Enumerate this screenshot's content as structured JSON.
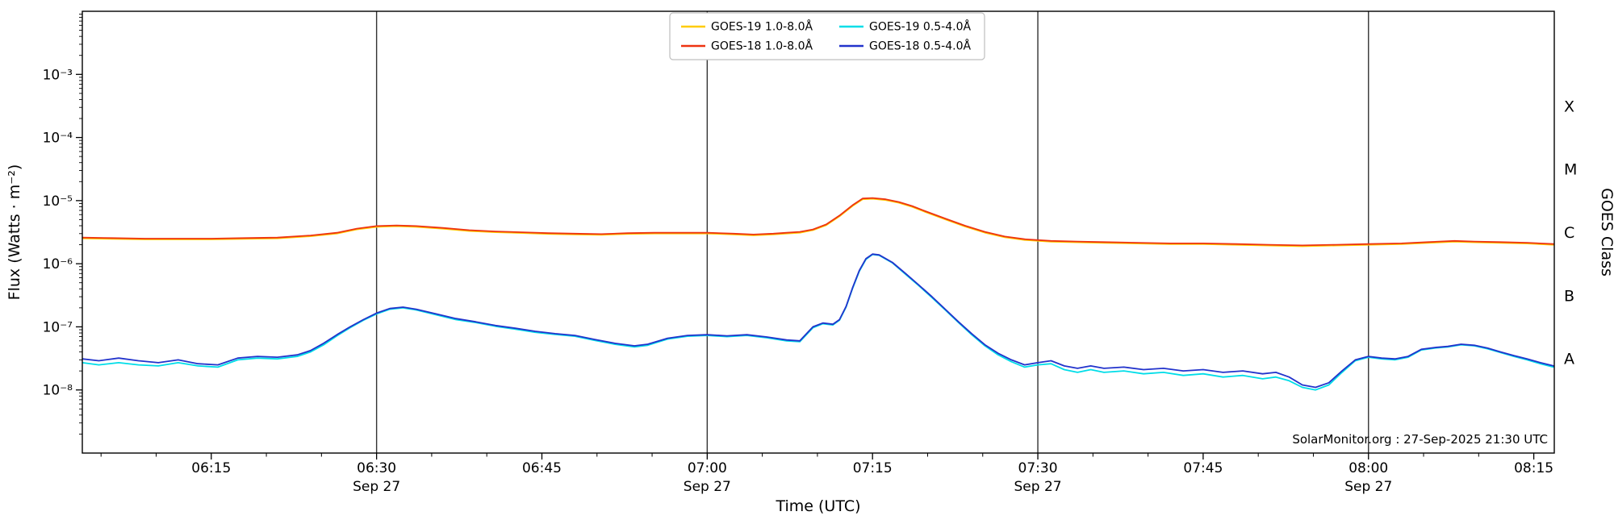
{
  "chart_data": {
    "type": "line",
    "title": "",
    "xlabel": "Time (UTC)",
    "ylabel": "Flux (Watts · m⁻²)",
    "ylabel_right": "GOES Class",
    "watermark": "SolarMonitor.org : 27-Sep-2025 21:30 UTC",
    "x_unit": "hours_utc_decimal",
    "xlim": [
      6.055,
      8.281
    ],
    "ylim_log10": [
      -9,
      -2
    ],
    "grid": false,
    "legend_position": "top-center",
    "x_major_ticks": [
      {
        "hours": 6.25,
        "label": "06:15"
      },
      {
        "hours": 6.5,
        "label": "06:30"
      },
      {
        "hours": 6.75,
        "label": "06:45"
      },
      {
        "hours": 7.0,
        "label": "07:00"
      },
      {
        "hours": 7.25,
        "label": "07:15"
      },
      {
        "hours": 7.5,
        "label": "07:30"
      },
      {
        "hours": 7.75,
        "label": "07:45"
      },
      {
        "hours": 8.0,
        "label": "08:00"
      },
      {
        "hours": 8.25,
        "label": "08:15"
      }
    ],
    "date_markers": [
      {
        "hours": 6.5,
        "label": "Sep 27"
      },
      {
        "hours": 7.0,
        "label": "Sep 27"
      },
      {
        "hours": 7.5,
        "label": "Sep 27"
      },
      {
        "hours": 8.0,
        "label": "Sep 27"
      }
    ],
    "y_ticks": [
      {
        "log10": -3,
        "label": "10⁻³"
      },
      {
        "log10": -4,
        "label": "10⁻⁴"
      },
      {
        "log10": -5,
        "label": "10⁻⁵"
      },
      {
        "log10": -6,
        "label": "10⁻⁶"
      },
      {
        "log10": -7,
        "label": "10⁻⁷"
      },
      {
        "log10": -8,
        "label": "10⁻⁸"
      }
    ],
    "goes_classes": [
      {
        "label": "X",
        "log10": -3.5
      },
      {
        "label": "M",
        "log10": -4.5
      },
      {
        "label": "C",
        "log10": -5.5
      },
      {
        "label": "B",
        "log10": -6.5
      },
      {
        "label": "A",
        "log10": -7.5
      }
    ],
    "legend": {
      "entries": [
        {
          "label": "GOES-19 1.0-8.0Å",
          "color": "#ffcc00"
        },
        {
          "label": "GOES-19 0.5-4.0Å",
          "color": "#00dde8"
        },
        {
          "label": "GOES-18 1.0-8.0Å",
          "color": "#ee3311"
        },
        {
          "label": "GOES-18 0.5-4.0Å",
          "color": "#2233cc"
        }
      ]
    },
    "series": [
      {
        "id": "goes19-long",
        "name": "GOES-19 1.0-8.0Å",
        "color": "#ffcc00",
        "x": [
          6.055,
          6.1,
          6.15,
          6.2,
          6.25,
          6.3,
          6.35,
          6.4,
          6.44,
          6.47,
          6.5,
          6.53,
          6.56,
          6.6,
          6.64,
          6.68,
          6.72,
          6.76,
          6.8,
          6.84,
          6.88,
          6.92,
          6.96,
          7.0,
          7.04,
          7.07,
          7.1,
          7.12,
          7.14,
          7.16,
          7.18,
          7.2,
          7.22,
          7.235,
          7.25,
          7.27,
          7.29,
          7.31,
          7.33,
          7.36,
          7.39,
          7.42,
          7.45,
          7.48,
          7.52,
          7.56,
          7.6,
          7.65,
          7.7,
          7.75,
          7.8,
          7.85,
          7.9,
          7.95,
          8.0,
          8.05,
          8.09,
          8.13,
          8.16,
          8.2,
          8.24,
          8.28
        ],
        "y": [
          2.52e-06,
          2.47e-06,
          2.43e-06,
          2.43e-06,
          2.43e-06,
          2.47e-06,
          2.52e-06,
          2.72e-06,
          3.01e-06,
          3.49e-06,
          3.83e-06,
          3.93e-06,
          3.83e-06,
          3.59e-06,
          3.3e-06,
          3.15e-06,
          3.06e-06,
          2.96e-06,
          2.91e-06,
          2.86e-06,
          2.96e-06,
          3.01e-06,
          3.01e-06,
          3.01e-06,
          2.91e-06,
          2.81e-06,
          2.91e-06,
          3.01e-06,
          3.1e-06,
          3.4e-06,
          4.07e-06,
          5.63e-06,
          8.25e-06,
          1.05e-05,
          1.07e-05,
          1.02e-05,
          9.22e-06,
          7.95e-06,
          6.6e-06,
          5.04e-06,
          3.88e-06,
          3.1e-06,
          2.62e-06,
          2.38e-06,
          2.23e-06,
          2.18e-06,
          2.13e-06,
          2.09e-06,
          2.04e-06,
          2.04e-06,
          1.99e-06,
          1.94e-06,
          1.89e-06,
          1.94e-06,
          1.99e-06,
          2.04e-06,
          2.13e-06,
          2.23e-06,
          2.18e-06,
          2.13e-06,
          2.09e-06,
          1.99e-06
        ]
      },
      {
        "id": "goes18-long",
        "name": "GOES-18 1.0-8.0Å",
        "color": "#ee3311",
        "x": [
          6.055,
          6.1,
          6.15,
          6.2,
          6.25,
          6.3,
          6.35,
          6.4,
          6.44,
          6.47,
          6.5,
          6.53,
          6.56,
          6.6,
          6.64,
          6.68,
          6.72,
          6.76,
          6.8,
          6.84,
          6.88,
          6.92,
          6.96,
          7.0,
          7.04,
          7.07,
          7.1,
          7.12,
          7.14,
          7.16,
          7.18,
          7.2,
          7.22,
          7.235,
          7.25,
          7.27,
          7.29,
          7.31,
          7.33,
          7.36,
          7.39,
          7.42,
          7.45,
          7.48,
          7.52,
          7.56,
          7.6,
          7.65,
          7.7,
          7.75,
          7.8,
          7.85,
          7.9,
          7.95,
          8.0,
          8.05,
          8.09,
          8.13,
          8.16,
          8.2,
          8.24,
          8.28
        ],
        "y": [
          2.6e-06,
          2.55e-06,
          2.5e-06,
          2.5e-06,
          2.5e-06,
          2.55e-06,
          2.6e-06,
          2.8e-06,
          3.1e-06,
          3.6e-06,
          3.95e-06,
          4.05e-06,
          3.95e-06,
          3.7e-06,
          3.4e-06,
          3.25e-06,
          3.15e-06,
          3.05e-06,
          3e-06,
          2.95e-06,
          3.05e-06,
          3.1e-06,
          3.1e-06,
          3.1e-06,
          3e-06,
          2.9e-06,
          3e-06,
          3.1e-06,
          3.2e-06,
          3.5e-06,
          4.2e-06,
          5.8e-06,
          8.5e-06,
          1.08e-05,
          1.1e-05,
          1.05e-05,
          9.5e-06,
          8.2e-06,
          6.8e-06,
          5.2e-06,
          4e-06,
          3.2e-06,
          2.7e-06,
          2.45e-06,
          2.3e-06,
          2.25e-06,
          2.2e-06,
          2.15e-06,
          2.1e-06,
          2.1e-06,
          2.05e-06,
          2e-06,
          1.95e-06,
          2e-06,
          2.05e-06,
          2.1e-06,
          2.2e-06,
          2.3e-06,
          2.25e-06,
          2.2e-06,
          2.15e-06,
          2.05e-06
        ]
      },
      {
        "id": "goes19-short",
        "name": "GOES-19 0.5-4.0Å",
        "color": "#00dde8",
        "x": [
          6.055,
          6.08,
          6.11,
          6.14,
          6.17,
          6.2,
          6.23,
          6.26,
          6.29,
          6.32,
          6.35,
          6.38,
          6.4,
          6.42,
          6.44,
          6.46,
          6.48,
          6.5,
          6.52,
          6.54,
          6.56,
          6.59,
          6.62,
          6.65,
          6.68,
          6.71,
          6.74,
          6.77,
          6.8,
          6.83,
          6.86,
          6.89,
          6.91,
          6.94,
          6.97,
          7.0,
          7.03,
          7.06,
          7.09,
          7.12,
          7.14,
          7.16,
          7.175,
          7.19,
          7.2,
          7.21,
          7.22,
          7.23,
          7.24,
          7.25,
          7.26,
          7.28,
          7.3,
          7.32,
          7.34,
          7.36,
          7.38,
          7.4,
          7.42,
          7.44,
          7.46,
          7.48,
          7.5,
          7.52,
          7.54,
          7.56,
          7.58,
          7.6,
          7.63,
          7.66,
          7.69,
          7.72,
          7.75,
          7.78,
          7.81,
          7.84,
          7.86,
          7.88,
          7.9,
          7.92,
          7.94,
          7.96,
          7.98,
          8.0,
          8.02,
          8.04,
          8.06,
          8.08,
          8.1,
          8.12,
          8.14,
          8.16,
          8.18,
          8.2,
          8.22,
          8.24,
          8.26,
          8.28
        ],
        "y": [
          2.7e-08,
          2.5e-08,
          2.7e-08,
          2.5e-08,
          2.4e-08,
          2.7e-08,
          2.4e-08,
          2.3e-08,
          3e-08,
          3.2e-08,
          3.1e-08,
          3.4e-08,
          4e-08,
          5.2e-08,
          7.2e-08,
          9.7e-08,
          1.27e-07,
          1.6e-07,
          1.9e-07,
          2e-07,
          1.85e-07,
          1.55e-07,
          1.3e-07,
          1.17e-07,
          1.02e-07,
          9.2e-08,
          8.2e-08,
          7.6e-08,
          7.1e-08,
          6.1e-08,
          5.3e-08,
          4.8e-08,
          5.1e-08,
          6.4e-08,
          7.1e-08,
          7.3e-08,
          7e-08,
          7.3e-08,
          6.7e-08,
          6e-08,
          5.8e-08,
          9.7e-08,
          1.12e-07,
          1.07e-07,
          1.27e-07,
          2.05e-07,
          4.1e-07,
          7.6e-07,
          1.17e-06,
          1.4e-06,
          1.36e-06,
          1.03e-06,
          6.8e-07,
          4.5e-07,
          2.9e-07,
          1.85e-07,
          1.17e-07,
          7.5e-08,
          5e-08,
          3.6e-08,
          2.8e-08,
          2.3e-08,
          2.5e-08,
          2.6e-08,
          2.1e-08,
          1.9e-08,
          2.1e-08,
          1.9e-08,
          2e-08,
          1.8e-08,
          1.9e-08,
          1.7e-08,
          1.8e-08,
          1.6e-08,
          1.7e-08,
          1.5e-08,
          1.6e-08,
          1.4e-08,
          1.1e-08,
          1e-08,
          1.2e-08,
          1.9e-08,
          2.9e-08,
          3.3e-08,
          3.1e-08,
          3e-08,
          3.3e-08,
          4.3e-08,
          4.6e-08,
          4.8e-08,
          5.2e-08,
          5e-08,
          4.5e-08,
          3.9e-08,
          3.4e-08,
          3e-08,
          2.6e-08,
          2.3e-08
        ]
      },
      {
        "id": "goes18-short",
        "name": "GOES-18 0.5-4.0Å",
        "color": "#2233cc",
        "x": [
          6.055,
          6.08,
          6.11,
          6.14,
          6.17,
          6.2,
          6.23,
          6.26,
          6.29,
          6.32,
          6.35,
          6.38,
          6.4,
          6.42,
          6.44,
          6.46,
          6.48,
          6.5,
          6.52,
          6.54,
          6.56,
          6.59,
          6.62,
          6.65,
          6.68,
          6.71,
          6.74,
          6.77,
          6.8,
          6.83,
          6.86,
          6.89,
          6.91,
          6.94,
          6.97,
          7.0,
          7.03,
          7.06,
          7.09,
          7.12,
          7.14,
          7.16,
          7.175,
          7.19,
          7.2,
          7.21,
          7.22,
          7.23,
          7.24,
          7.25,
          7.26,
          7.28,
          7.3,
          7.32,
          7.34,
          7.36,
          7.38,
          7.4,
          7.42,
          7.44,
          7.46,
          7.48,
          7.5,
          7.52,
          7.54,
          7.56,
          7.58,
          7.6,
          7.63,
          7.66,
          7.69,
          7.72,
          7.75,
          7.78,
          7.81,
          7.84,
          7.86,
          7.88,
          7.9,
          7.92,
          7.94,
          7.96,
          7.98,
          8.0,
          8.02,
          8.04,
          8.06,
          8.08,
          8.1,
          8.12,
          8.14,
          8.16,
          8.18,
          8.2,
          8.22,
          8.24,
          8.26,
          8.28
        ],
        "y": [
          3.1e-08,
          2.9e-08,
          3.2e-08,
          2.9e-08,
          2.7e-08,
          3e-08,
          2.6e-08,
          2.5e-08,
          3.2e-08,
          3.4e-08,
          3.3e-08,
          3.6e-08,
          4.2e-08,
          5.5e-08,
          7.5e-08,
          1e-07,
          1.3e-07,
          1.65e-07,
          1.95e-07,
          2.05e-07,
          1.9e-07,
          1.6e-07,
          1.35e-07,
          1.2e-07,
          1.05e-07,
          9.5e-08,
          8.5e-08,
          7.8e-08,
          7.3e-08,
          6.3e-08,
          5.5e-08,
          5e-08,
          5.3e-08,
          6.6e-08,
          7.3e-08,
          7.5e-08,
          7.2e-08,
          7.5e-08,
          6.9e-08,
          6.2e-08,
          6e-08,
          1e-07,
          1.15e-07,
          1.1e-07,
          1.3e-07,
          2.1e-07,
          4.2e-07,
          7.8e-07,
          1.2e-06,
          1.42e-06,
          1.38e-06,
          1.05e-06,
          7e-07,
          4.6e-07,
          3e-07,
          1.9e-07,
          1.2e-07,
          7.8e-08,
          5.2e-08,
          3.8e-08,
          3e-08,
          2.5e-08,
          2.7e-08,
          2.9e-08,
          2.4e-08,
          2.2e-08,
          2.4e-08,
          2.2e-08,
          2.3e-08,
          2.1e-08,
          2.2e-08,
          2e-08,
          2.1e-08,
          1.9e-08,
          2e-08,
          1.8e-08,
          1.9e-08,
          1.6e-08,
          1.2e-08,
          1.1e-08,
          1.3e-08,
          2e-08,
          3e-08,
          3.4e-08,
          3.2e-08,
          3.1e-08,
          3.4e-08,
          4.4e-08,
          4.7e-08,
          4.9e-08,
          5.3e-08,
          5.1e-08,
          4.6e-08,
          4e-08,
          3.5e-08,
          3.1e-08,
          2.7e-08,
          2.4e-08
        ]
      }
    ]
  }
}
